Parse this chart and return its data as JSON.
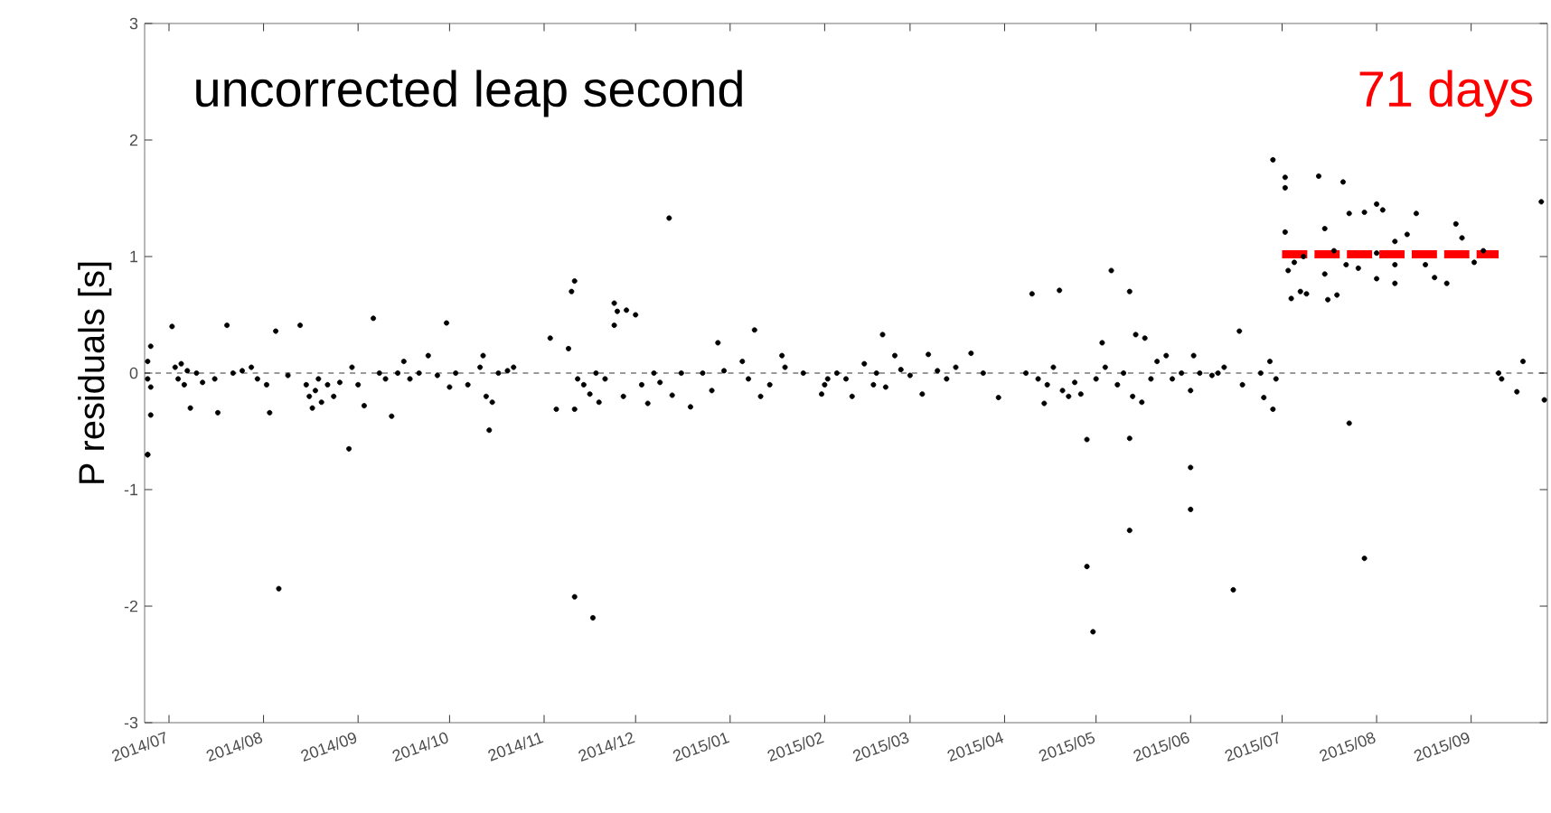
{
  "chart_data": {
    "type": "scatter",
    "ylabel": "P residuals [s]",
    "annotations": [
      "uncorrected leap second",
      "71 days"
    ],
    "xlim": [
      "2014-06-23",
      "2015-09-26"
    ],
    "xticks": [
      {
        "value": "2014-07",
        "label": "2014/07"
      },
      {
        "value": "2014-08",
        "label": "2014/08"
      },
      {
        "value": "2014-09",
        "label": "2014/09"
      },
      {
        "value": "2014-10",
        "label": "2014/10"
      },
      {
        "value": "2014-11",
        "label": "2014/11"
      },
      {
        "value": "2014-12",
        "label": "2014/12"
      },
      {
        "value": "2015-01",
        "label": "2015/01"
      },
      {
        "value": "2015-02",
        "label": "2015/02"
      },
      {
        "value": "2015-03",
        "label": "2015/03"
      },
      {
        "value": "2015-04",
        "label": "2015/04"
      },
      {
        "value": "2015-05",
        "label": "2015/05"
      },
      {
        "value": "2015-06",
        "label": "2015/06"
      },
      {
        "value": "2015-07",
        "label": "2015/07"
      },
      {
        "value": "2015-08",
        "label": "2015/08"
      },
      {
        "value": "2015-09",
        "label": "2015/09"
      }
    ],
    "ylim": [
      -3,
      3
    ],
    "yticks": [
      -3,
      -2,
      -1,
      0,
      1,
      2,
      3
    ],
    "marker": "circle",
    "ref_lines": [
      {
        "axis": "y",
        "value": 0,
        "color": "#000000",
        "line_style": "dashed"
      }
    ],
    "series": [
      {
        "color": "#000000",
        "x": [
          "2014-06-24",
          "2014-06-24",
          "2014-06-24",
          "2014-06-24",
          "2014-06-25",
          "2014-06-25",
          "2014-06-25",
          "2014-07-02",
          "2014-07-03",
          "2014-07-04",
          "2014-07-05",
          "2014-07-06",
          "2014-07-07",
          "2014-07-08",
          "2014-07-10",
          "2014-07-12",
          "2014-07-16",
          "2014-07-17",
          "2014-07-20",
          "2014-07-22",
          "2014-07-25",
          "2014-07-28",
          "2014-07-30",
          "2014-08-02",
          "2014-08-03",
          "2014-08-05",
          "2014-08-06",
          "2014-08-09",
          "2014-08-13",
          "2014-08-15",
          "2014-08-16",
          "2014-08-17",
          "2014-08-18",
          "2014-08-19",
          "2014-08-20",
          "2014-08-22",
          "2014-08-24",
          "2014-08-26",
          "2014-08-29",
          "2014-08-30",
          "2014-09-01",
          "2014-09-03",
          "2014-09-06",
          "2014-09-08",
          "2014-09-10",
          "2014-09-12",
          "2014-09-14",
          "2014-09-16",
          "2014-09-18",
          "2014-09-21",
          "2014-09-24",
          "2014-09-27",
          "2014-09-30",
          "2014-10-01",
          "2014-10-03",
          "2014-10-07",
          "2014-10-11",
          "2014-10-12",
          "2014-10-13",
          "2014-10-14",
          "2014-10-15",
          "2014-10-17",
          "2014-10-20",
          "2014-10-22",
          "2014-11-03",
          "2014-11-05",
          "2014-11-09",
          "2014-11-10",
          "2014-11-11",
          "2014-11-11",
          "2014-11-11",
          "2014-11-12",
          "2014-11-14",
          "2014-11-16",
          "2014-11-17",
          "2014-11-18",
          "2014-11-19",
          "2014-11-21",
          "2014-11-24",
          "2014-11-24",
          "2014-11-25",
          "2014-11-27",
          "2014-11-28",
          "2014-12-01",
          "2014-12-03",
          "2014-12-05",
          "2014-12-07",
          "2014-12-09",
          "2014-12-12",
          "2014-12-13",
          "2014-12-16",
          "2014-12-19",
          "2014-12-23",
          "2014-12-26",
          "2014-12-28",
          "2014-12-30",
          "2015-01-05",
          "2015-01-07",
          "2015-01-09",
          "2015-01-11",
          "2015-01-14",
          "2015-01-18",
          "2015-01-19",
          "2015-01-25",
          "2015-01-31",
          "2015-02-01",
          "2015-02-02",
          "2015-02-05",
          "2015-02-08",
          "2015-02-10",
          "2015-02-14",
          "2015-02-17",
          "2015-02-18",
          "2015-02-20",
          "2015-02-21",
          "2015-02-24",
          "2015-02-26",
          "2015-03-01",
          "2015-03-05",
          "2015-03-07",
          "2015-03-10",
          "2015-03-13",
          "2015-03-16",
          "2015-03-21",
          "2015-03-25",
          "2015-03-30",
          "2015-04-08",
          "2015-04-10",
          "2015-04-12",
          "2015-04-14",
          "2015-04-15",
          "2015-04-17",
          "2015-04-19",
          "2015-04-20",
          "2015-04-22",
          "2015-04-24",
          "2015-04-26",
          "2015-04-28",
          "2015-04-28",
          "2015-04-30",
          "2015-05-01",
          "2015-05-03",
          "2015-05-04",
          "2015-05-06",
          "2015-05-08",
          "2015-05-10",
          "2015-05-12",
          "2015-05-12",
          "2015-05-12",
          "2015-05-13",
          "2015-05-14",
          "2015-05-16",
          "2015-05-17",
          "2015-05-19",
          "2015-05-21",
          "2015-05-24",
          "2015-05-26",
          "2015-05-29",
          "2015-06-01",
          "2015-06-01",
          "2015-06-01",
          "2015-06-02",
          "2015-06-04",
          "2015-06-08",
          "2015-06-10",
          "2015-06-12",
          "2015-06-15",
          "2015-06-17",
          "2015-06-18",
          "2015-06-24",
          "2015-06-25",
          "2015-06-27",
          "2015-06-28",
          "2015-06-28",
          "2015-06-29",
          "2015-07-02",
          "2015-07-02",
          "2015-07-02",
          "2015-07-03",
          "2015-07-04",
          "2015-07-05",
          "2015-07-07",
          "2015-07-08",
          "2015-07-09",
          "2015-07-13",
          "2015-07-15",
          "2015-07-15",
          "2015-07-16",
          "2015-07-18",
          "2015-07-19",
          "2015-07-21",
          "2015-07-22",
          "2015-07-23",
          "2015-07-23",
          "2015-07-26",
          "2015-07-28",
          "2015-07-28",
          "2015-08-01",
          "2015-08-01",
          "2015-08-01",
          "2015-08-03",
          "2015-08-07",
          "2015-08-07",
          "2015-08-07",
          "2015-08-11",
          "2015-08-14",
          "2015-08-17",
          "2015-08-20",
          "2015-08-24",
          "2015-08-27",
          "2015-08-29",
          "2015-09-02",
          "2015-09-05",
          "2015-09-10",
          "2015-09-11",
          "2015-09-16",
          "2015-09-18",
          "2015-09-24",
          "2015-09-25"
        ],
        "values": [
          -0.05,
          0.1,
          -0.7,
          -0.7,
          0.23,
          -0.36,
          -0.12,
          0.4,
          0.05,
          -0.05,
          0.08,
          -0.1,
          0.02,
          -0.3,
          0.0,
          -0.08,
          -0.05,
          -0.34,
          0.41,
          0.0,
          0.02,
          0.05,
          -0.05,
          -0.1,
          -0.34,
          0.36,
          -1.85,
          -0.02,
          0.41,
          -0.1,
          -0.2,
          -0.3,
          -0.15,
          -0.05,
          -0.25,
          -0.1,
          -0.2,
          -0.08,
          -0.65,
          0.05,
          -0.1,
          -0.28,
          0.47,
          0.0,
          -0.05,
          -0.37,
          0.0,
          0.1,
          -0.05,
          0.0,
          0.15,
          -0.02,
          0.43,
          -0.12,
          0.0,
          -0.1,
          0.05,
          0.15,
          -0.2,
          -0.49,
          -0.25,
          0.0,
          0.02,
          0.05,
          0.3,
          -0.31,
          0.21,
          0.7,
          0.79,
          -1.92,
          -0.31,
          -0.05,
          -0.1,
          -0.18,
          -2.1,
          0.0,
          -0.25,
          -0.05,
          0.6,
          0.41,
          0.53,
          -0.2,
          0.54,
          0.5,
          -0.1,
          -0.26,
          0.0,
          -0.08,
          1.33,
          -0.19,
          0.0,
          -0.29,
          0.0,
          -0.15,
          0.26,
          0.02,
          0.1,
          -0.05,
          0.37,
          -0.2,
          -0.1,
          0.15,
          0.05,
          0.0,
          -0.18,
          -0.1,
          -0.05,
          0.0,
          -0.05,
          -0.2,
          0.08,
          -0.1,
          0.0,
          0.33,
          -0.12,
          0.15,
          0.03,
          -0.02,
          -0.18,
          0.16,
          0.02,
          -0.05,
          0.05,
          0.17,
          0.0,
          -0.21,
          0.0,
          0.68,
          -0.05,
          -0.26,
          -0.1,
          0.05,
          0.71,
          -0.15,
          -0.2,
          -0.08,
          -0.18,
          -0.57,
          -1.66,
          -2.22,
          -0.05,
          0.26,
          0.05,
          0.88,
          -0.1,
          0.0,
          0.7,
          -0.56,
          -1.35,
          -0.2,
          0.33,
          -0.25,
          0.3,
          -0.05,
          0.1,
          0.15,
          -0.05,
          0.0,
          -0.81,
          -1.17,
          -0.15,
          0.15,
          0.0,
          -0.02,
          0.0,
          0.05,
          -1.86,
          0.36,
          -0.1,
          0.0,
          -0.21,
          0.1,
          -0.31,
          1.83,
          -0.05,
          1.68,
          1.59,
          1.21,
          0.88,
          0.64,
          0.95,
          0.7,
          1.0,
          0.68,
          1.69,
          1.24,
          0.85,
          0.63,
          1.05,
          0.67,
          1.64,
          0.93,
          1.37,
          -0.43,
          0.9,
          1.38,
          -1.59,
          0.81,
          1.03,
          1.45,
          1.4,
          0.77,
          0.93,
          1.13,
          1.19,
          1.37,
          0.93,
          0.82,
          0.77,
          1.28,
          1.16,
          0.95,
          1.05,
          0.0,
          -0.05,
          -0.16,
          0.1,
          1.47,
          -0.23
        ]
      },
      {
        "type": "line",
        "color": "#ff0000",
        "line_style": "dashed",
        "marker": "none",
        "x": [
          "2015-07-01",
          "2015-09-10"
        ],
        "values": [
          1.02,
          1.02
        ]
      }
    ]
  }
}
